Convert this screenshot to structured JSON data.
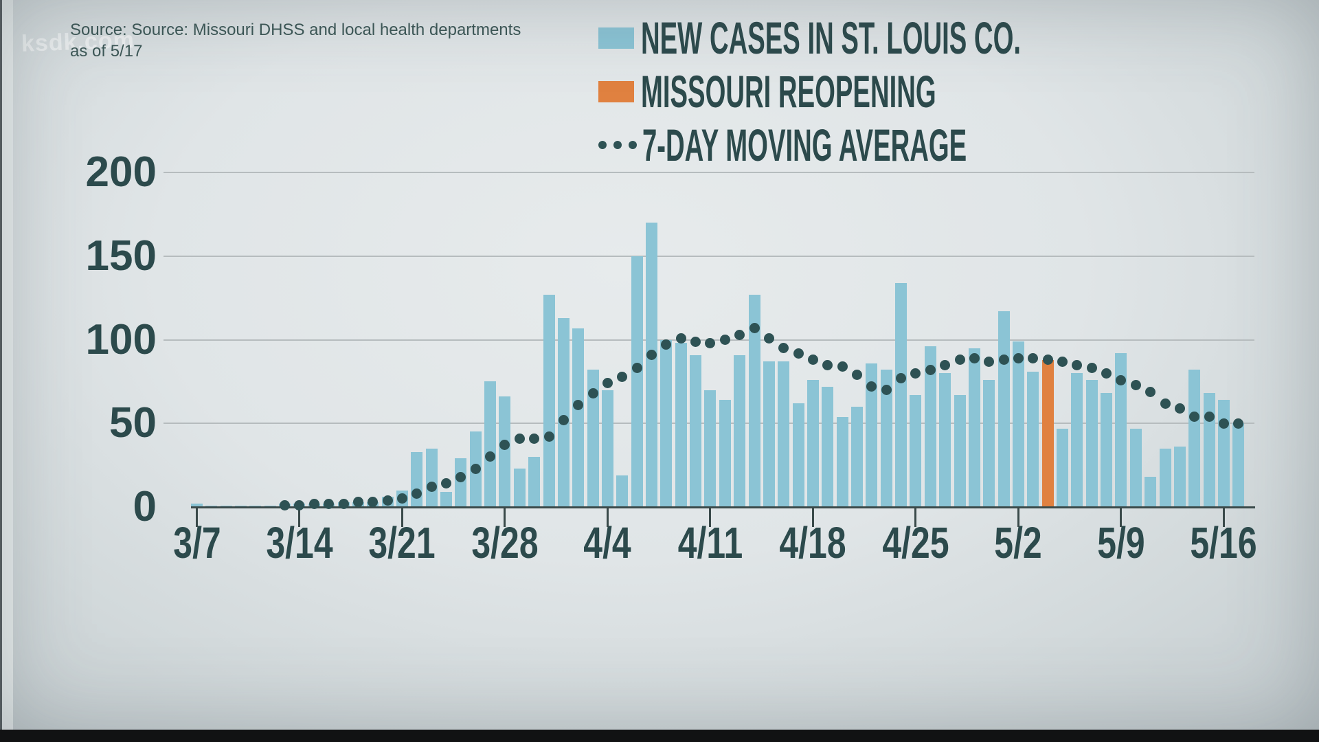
{
  "watermark": "ksdk.com",
  "source": {
    "line1": "Source: Source: Missouri DHSS and local health departments",
    "line2": "as of 5/17"
  },
  "legend": [
    {
      "marker": "square",
      "color": "#8bc4d5",
      "label": "NEW CASES IN ST. LOUIS CO."
    },
    {
      "marker": "square",
      "color": "#e08140",
      "label": "MISSOURI REOPENING"
    },
    {
      "marker": "dots",
      "color": "#2e5254",
      "label": "7-DAY MOVING AVERAGE"
    }
  ],
  "chart_data": {
    "type": "bar",
    "title": "NEW CASES IN ST. LOUIS CO.",
    "xlabel": "",
    "ylabel": "",
    "ylim": [
      0,
      200
    ],
    "y_ticks": [
      0,
      50,
      100,
      150,
      200
    ],
    "x_tick_labels": [
      "3/7",
      "3/14",
      "3/21",
      "3/28",
      "4/4",
      "4/11",
      "4/18",
      "4/25",
      "5/2",
      "5/9",
      "5/16"
    ],
    "grid": true,
    "legend_position": "top-right",
    "categories": [
      "3/7",
      "3/8",
      "3/9",
      "3/10",
      "3/11",
      "3/12",
      "3/13",
      "3/14",
      "3/15",
      "3/16",
      "3/17",
      "3/18",
      "3/19",
      "3/20",
      "3/21",
      "3/22",
      "3/23",
      "3/24",
      "3/25",
      "3/26",
      "3/27",
      "3/28",
      "3/29",
      "3/30",
      "3/31",
      "4/1",
      "4/2",
      "4/3",
      "4/4",
      "4/5",
      "4/6",
      "4/7",
      "4/8",
      "4/9",
      "4/10",
      "4/11",
      "4/12",
      "4/13",
      "4/14",
      "4/15",
      "4/16",
      "4/17",
      "4/18",
      "4/19",
      "4/20",
      "4/21",
      "4/22",
      "4/23",
      "4/24",
      "4/25",
      "4/26",
      "4/27",
      "4/28",
      "4/29",
      "4/30",
      "5/1",
      "5/2",
      "5/3",
      "5/4",
      "5/5",
      "5/6",
      "5/7",
      "5/8",
      "5/9",
      "5/10",
      "5/11",
      "5/12",
      "5/13",
      "5/14",
      "5/15",
      "5/16",
      "5/17"
    ],
    "series": [
      {
        "name": "NEW CASES IN ST. LOUIS CO.",
        "type": "bar",
        "values": [
          2,
          1,
          1,
          1,
          1,
          1,
          2,
          2,
          2,
          2,
          3,
          3,
          3,
          6,
          10,
          33,
          35,
          9,
          29,
          45,
          75,
          66,
          23,
          30,
          127,
          113,
          107,
          82,
          70,
          19,
          150,
          170,
          100,
          98,
          91,
          70,
          64,
          91,
          127,
          87,
          87,
          62,
          76,
          72,
          54,
          60,
          86,
          82,
          134,
          67,
          96,
          80,
          67,
          95,
          76,
          117,
          99,
          81,
          88,
          47,
          80,
          76,
          68,
          92,
          47,
          18,
          35,
          36,
          82,
          68,
          64,
          50
        ]
      },
      {
        "name": "7-DAY MOVING AVERAGE",
        "type": "dotted-line",
        "start_index": 6,
        "values": [
          1,
          1,
          2,
          2,
          2,
          3,
          3,
          4,
          5,
          8,
          12,
          14,
          18,
          23,
          30,
          37,
          41,
          41,
          42,
          52,
          61,
          68,
          74,
          78,
          83,
          91,
          97,
          101,
          99,
          98,
          100,
          103,
          107,
          101,
          95,
          92,
          88,
          85,
          84,
          79,
          72,
          70,
          77,
          80,
          82,
          85,
          88,
          89,
          87,
          88,
          89,
          89,
          88,
          87,
          85,
          83,
          80,
          76,
          73,
          69,
          62,
          59,
          54,
          54,
          50,
          50
        ]
      }
    ],
    "highlight": {
      "index": 58,
      "date": "5/4",
      "label": "MISSOURI REOPENING"
    },
    "colors": {
      "bar": "#8bc4d5",
      "highlight": "#e08140",
      "average": "#2e5254",
      "text": "#2c4a4c",
      "grid": "#b6bcbe",
      "axis": "#3a4a4a",
      "background": "#dde2e4"
    }
  }
}
